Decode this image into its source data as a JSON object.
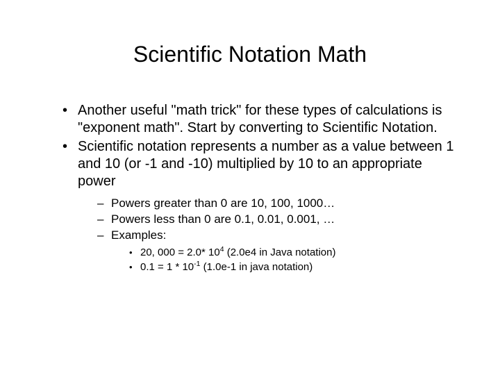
{
  "title": "Scientific Notation Math",
  "bullets": [
    "Another useful \"math trick\" for these types of calculations is \"exponent math\".  Start by converting to Scientific Notation.",
    "Scientific notation represents a number as a value between 1 and 10 (or -1 and -10) multiplied by 10 to an appropriate power"
  ],
  "sub_bullets": [
    "Powers greater than 0 are 10, 100, 1000…",
    "Powers less than 0 are 0.1, 0.01, 0.001, …",
    "Examples:"
  ],
  "example1": {
    "prefix": "20, 000 = 2.0* 10",
    "exp": "4",
    "suffix": "   (2.0e4 in Java notation)"
  },
  "example2": {
    "prefix": "0.1 = 1 * 10",
    "exp": "-1",
    "suffix": " (1.0e-1 in java notation)"
  },
  "style": {
    "background_color": "#ffffff",
    "text_color": "#000000",
    "title_fontsize": 32,
    "level1_fontsize": 20,
    "level2_fontsize": 17,
    "level3_fontsize": 15,
    "font_family": "Arial"
  }
}
